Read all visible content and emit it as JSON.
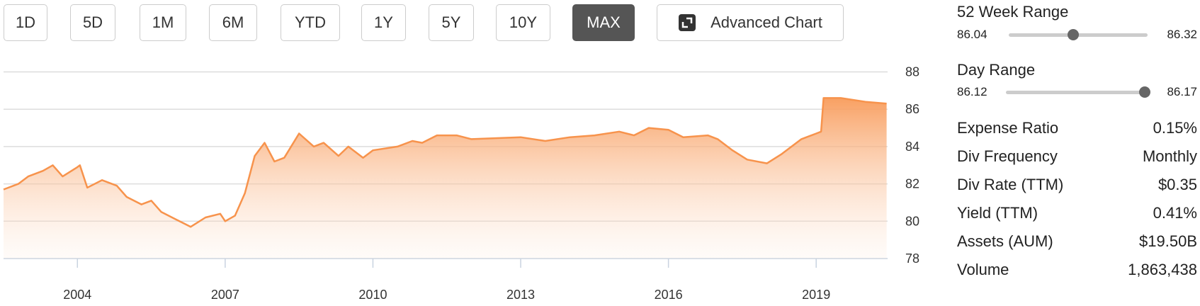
{
  "range_buttons": [
    "1D",
    "5D",
    "1M",
    "6M",
    "YTD",
    "1Y",
    "5Y",
    "10Y",
    "MAX"
  ],
  "active_range": "MAX",
  "advanced_chart": "Advanced Chart",
  "chart_data": {
    "type": "area",
    "x": [
      2002.5,
      2002.8,
      2003.0,
      2003.3,
      2003.5,
      2003.7,
      2004.0,
      2004.05,
      2004.2,
      2004.5,
      2004.8,
      2005.0,
      2005.3,
      2005.5,
      2005.7,
      2006.0,
      2006.3,
      2006.6,
      2006.9,
      2007.0,
      2007.2,
      2007.4,
      2007.6,
      2007.8,
      2008.0,
      2008.2,
      2008.5,
      2008.8,
      2009.0,
      2009.3,
      2009.5,
      2009.8,
      2010.0,
      2010.5,
      2010.8,
      2011.0,
      2011.3,
      2011.7,
      2012.0,
      2013.0,
      2013.5,
      2014.0,
      2014.5,
      2015.0,
      2015.3,
      2015.6,
      2016.0,
      2016.3,
      2016.8,
      2017.0,
      2017.3,
      2017.6,
      2018.0,
      2018.3,
      2018.7,
      2019.0,
      2019.1,
      2019.15,
      2019.5,
      2020.0,
      2020.43
    ],
    "series": [
      {
        "color": "#f7934c",
        "values": [
          81.7,
          82.0,
          82.4,
          82.7,
          83.0,
          82.4,
          82.9,
          83.0,
          81.8,
          82.2,
          81.9,
          81.3,
          80.9,
          81.1,
          80.5,
          80.1,
          79.7,
          80.2,
          80.4,
          80.0,
          80.3,
          81.5,
          83.5,
          84.2,
          83.2,
          83.4,
          84.7,
          84.0,
          84.2,
          83.5,
          84.0,
          83.4,
          83.8,
          84.0,
          84.3,
          84.2,
          84.6,
          84.6,
          84.4,
          84.5,
          84.3,
          84.5,
          84.6,
          84.8,
          84.6,
          85.0,
          84.9,
          84.5,
          84.6,
          84.4,
          83.8,
          83.3,
          83.1,
          83.6,
          84.4,
          84.7,
          84.8,
          86.6,
          86.6,
          86.4,
          86.3
        ]
      }
    ],
    "xlim": [
      2002.5,
      2020.45
    ],
    "xticks": [
      2004,
      2007,
      2010,
      2013,
      2016,
      2019
    ],
    "ylim": [
      78,
      88
    ],
    "yticks": [
      78,
      80,
      82,
      84,
      86,
      88
    ],
    "grid": true
  },
  "week52_range": {
    "label": "52 Week Range",
    "low": "86.04",
    "high": "86.32"
  },
  "day_range": {
    "label": "Day Range",
    "low": "86.12",
    "high": "86.17"
  },
  "stats": [
    [
      "Expense Ratio",
      "0.15%"
    ],
    [
      "Div Frequency",
      "Monthly"
    ],
    [
      "Div Rate (TTM)",
      "$0.35"
    ],
    [
      "Yield (TTM)",
      "0.41%"
    ],
    [
      "Assets (AUM)",
      "$19.50B"
    ],
    [
      "Volume",
      "1,863,438"
    ]
  ]
}
